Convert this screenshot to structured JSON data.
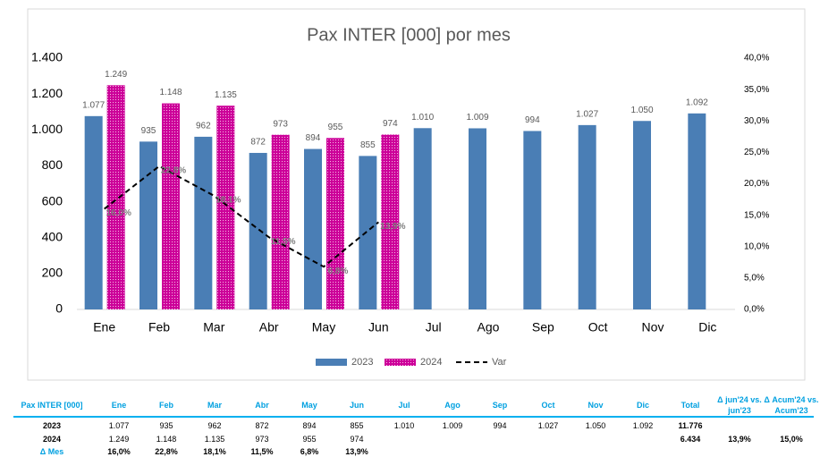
{
  "chart_data": {
    "type": "bar",
    "title": "Pax INTER [000] por mes",
    "categories": [
      "Ene",
      "Feb",
      "Mar",
      "Abr",
      "May",
      "Jun",
      "Jul",
      "Ago",
      "Sep",
      "Oct",
      "Nov",
      "Dic"
    ],
    "series": [
      {
        "name": "2023",
        "color": "#4a7eb5",
        "values": [
          1077,
          935,
          962,
          872,
          894,
          855,
          1010,
          1009,
          994,
          1027,
          1050,
          1092
        ],
        "value_labels": [
          "1.077",
          "935",
          "962",
          "872",
          "894",
          "855",
          "1.010",
          "1.009",
          "994",
          "1.027",
          "1.050",
          "1.092"
        ]
      },
      {
        "name": "2024",
        "color": "#cc0099",
        "values": [
          1249,
          1148,
          1135,
          973,
          955,
          974,
          null,
          null,
          null,
          null,
          null,
          null
        ],
        "value_labels": [
          "1.249",
          "1.148",
          "1.135",
          "973",
          "955",
          "974",
          null,
          null,
          null,
          null,
          null,
          null
        ]
      },
      {
        "name": "Var",
        "type": "line",
        "axis": "y2",
        "color": "#000000",
        "values": [
          16.0,
          22.8,
          18.1,
          11.5,
          6.8,
          13.9,
          null,
          null,
          null,
          null,
          null,
          null
        ],
        "value_labels": [
          "16,0%",
          "22,8%",
          "18,1%",
          "11,5%",
          "6,8%",
          "13,9%",
          null,
          null,
          null,
          null,
          null,
          null
        ]
      }
    ],
    "ylim": [
      0,
      1400
    ],
    "yticks": [
      0,
      200,
      400,
      600,
      800,
      {
        "value": 1000,
        "label": "1.000"
      },
      {
        "value": 1200,
        "label": "1.200"
      },
      {
        "value": 1400,
        "label": "1.400"
      }
    ],
    "y2lim": [
      0,
      40
    ],
    "y2ticks": [
      {
        "value": 0,
        "label": "0,0%"
      },
      {
        "value": 5,
        "label": "5,0%"
      },
      {
        "value": 10,
        "label": "10,0%"
      },
      {
        "value": 15,
        "label": "15,0%"
      },
      {
        "value": 20,
        "label": "20,0%"
      },
      {
        "value": 25,
        "label": "25,0%"
      },
      {
        "value": 30,
        "label": "30,0%"
      },
      {
        "value": 35,
        "label": "35,0%"
      },
      {
        "value": 40,
        "label": "40,0%"
      }
    ],
    "legend": "bottom"
  },
  "table": {
    "header": [
      "Pax INTER [000]",
      "Ene",
      "Feb",
      "Mar",
      "Abr",
      "May",
      "Jun",
      "Jul",
      "Ago",
      "Sep",
      "Oct",
      "Nov",
      "Dic",
      "Total",
      "Δ jun'24 vs. jun'23",
      "Δ Acum'24 vs. Acum'23"
    ],
    "rows": [
      {
        "label": "2023",
        "months": [
          "1.077",
          "935",
          "962",
          "872",
          "894",
          "855",
          "1.010",
          "1.009",
          "994",
          "1.027",
          "1.050",
          "1.092"
        ],
        "total": "11.776"
      },
      {
        "label": "2024",
        "months": [
          "1.249",
          "1.148",
          "1.135",
          "973",
          "955",
          "974"
        ],
        "total": "6.434",
        "d_jun": "13,9%",
        "d_acum": "15,0%"
      },
      {
        "label": "Δ Mes",
        "months": [
          "16,0%",
          "22,8%",
          "18,1%",
          "11,5%",
          "6,8%",
          "13,9%"
        ]
      }
    ]
  }
}
